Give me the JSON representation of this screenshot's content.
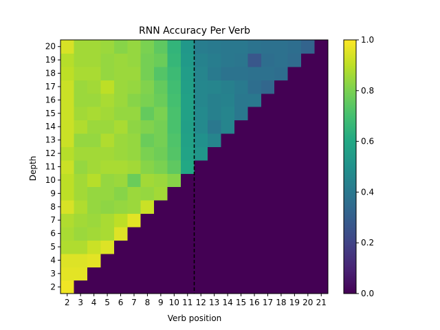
{
  "chart_data": {
    "type": "heatmap",
    "title": "RNN Accuracy Per Verb",
    "xlabel": "Verb position",
    "ylabel": "Depth",
    "x_categories": [
      "2",
      "3",
      "4",
      "5",
      "6",
      "7",
      "8",
      "9",
      "10",
      "11",
      "12",
      "13",
      "14",
      "15",
      "16",
      "17",
      "18",
      "19",
      "20",
      "21"
    ],
    "y_categories": [
      "2",
      "3",
      "4",
      "5",
      "6",
      "7",
      "8",
      "9",
      "10",
      "11",
      "12",
      "13",
      "14",
      "15",
      "16",
      "17",
      "18",
      "19",
      "20"
    ],
    "rows": [
      {
        "depth": "2",
        "values": [
          0.98
        ]
      },
      {
        "depth": "3",
        "values": [
          0.96,
          0.96
        ]
      },
      {
        "depth": "4",
        "values": [
          0.95,
          0.95,
          0.96
        ]
      },
      {
        "depth": "5",
        "values": [
          0.88,
          0.88,
          0.92,
          0.95
        ]
      },
      {
        "depth": "6",
        "values": [
          0.87,
          0.85,
          0.86,
          0.87,
          0.95
        ]
      },
      {
        "depth": "7",
        "values": [
          0.88,
          0.86,
          0.85,
          0.87,
          0.9,
          0.96
        ]
      },
      {
        "depth": "8",
        "values": [
          0.94,
          0.88,
          0.84,
          0.83,
          0.84,
          0.85,
          0.92
        ]
      },
      {
        "depth": "9",
        "values": [
          0.9,
          0.86,
          0.84,
          0.84,
          0.82,
          0.85,
          0.84,
          0.86
        ]
      },
      {
        "depth": "10",
        "values": [
          0.9,
          0.86,
          0.89,
          0.84,
          0.85,
          0.77,
          0.86,
          0.85,
          0.82
        ]
      },
      {
        "depth": "11",
        "values": [
          0.92,
          0.84,
          0.86,
          0.87,
          0.87,
          0.86,
          0.82,
          0.8,
          0.75,
          0.6
        ]
      },
      {
        "depth": "12",
        "values": [
          0.89,
          0.86,
          0.86,
          0.86,
          0.85,
          0.84,
          0.8,
          0.78,
          0.73,
          0.58,
          0.52
        ]
      },
      {
        "depth": "13",
        "values": [
          0.92,
          0.84,
          0.84,
          0.88,
          0.85,
          0.84,
          0.77,
          0.79,
          0.72,
          0.57,
          0.5,
          0.45
        ]
      },
      {
        "depth": "14",
        "values": [
          0.92,
          0.88,
          0.85,
          0.85,
          0.87,
          0.83,
          0.81,
          0.79,
          0.71,
          0.56,
          0.47,
          0.4,
          0.45
        ]
      },
      {
        "depth": "15",
        "values": [
          0.92,
          0.86,
          0.87,
          0.86,
          0.84,
          0.84,
          0.76,
          0.8,
          0.71,
          0.57,
          0.47,
          0.43,
          0.45,
          0.4
        ]
      },
      {
        "depth": "16",
        "values": [
          0.92,
          0.85,
          0.85,
          0.87,
          0.85,
          0.82,
          0.8,
          0.77,
          0.7,
          0.57,
          0.46,
          0.43,
          0.44,
          0.4,
          0.4
        ]
      },
      {
        "depth": "17",
        "values": [
          0.92,
          0.85,
          0.86,
          0.9,
          0.85,
          0.84,
          0.81,
          0.76,
          0.69,
          0.56,
          0.46,
          0.45,
          0.43,
          0.41,
          0.36,
          0.33
        ]
      },
      {
        "depth": "18",
        "values": [
          0.9,
          0.87,
          0.87,
          0.84,
          0.85,
          0.85,
          0.79,
          0.73,
          0.68,
          0.55,
          0.45,
          0.41,
          0.38,
          0.38,
          0.37,
          0.37,
          0.36
        ]
      },
      {
        "depth": "19",
        "values": [
          0.89,
          0.86,
          0.86,
          0.84,
          0.85,
          0.84,
          0.79,
          0.77,
          0.66,
          0.54,
          0.44,
          0.42,
          0.4,
          0.39,
          0.27,
          0.36,
          0.37,
          0.35
        ]
      },
      {
        "depth": "20",
        "values": [
          0.94,
          0.86,
          0.86,
          0.85,
          0.82,
          0.84,
          0.8,
          0.75,
          0.65,
          0.53,
          0.42,
          0.41,
          0.4,
          0.4,
          0.38,
          0.37,
          0.37,
          0.36,
          0.32
        ]
      }
    ],
    "fill_value_outside": 0.0,
    "colormap": "viridis",
    "colorbar": {
      "min": 0.0,
      "max": 1.0,
      "ticks": [
        "0.0",
        "0.2",
        "0.4",
        "0.6",
        "0.8",
        "1.0"
      ]
    },
    "reference_line": {
      "x_between": [
        "11",
        "12"
      ],
      "style": "dashed",
      "color": "#000000"
    }
  }
}
